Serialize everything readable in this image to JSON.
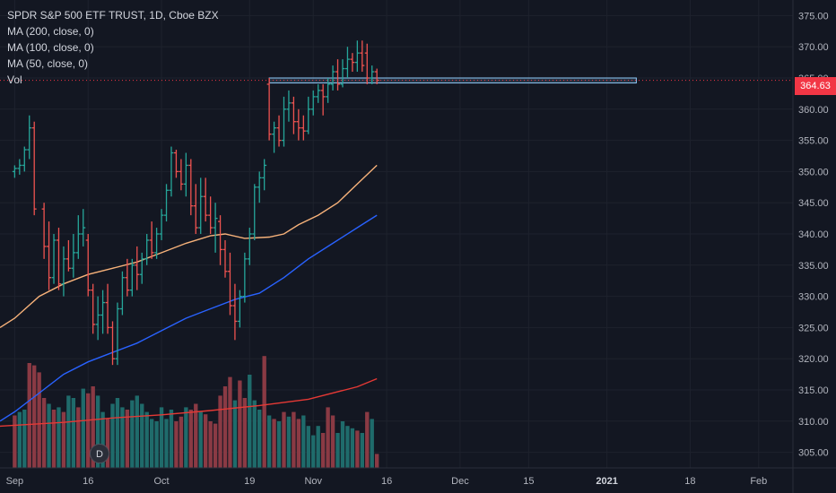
{
  "legend": {
    "title": "SPDR S&P 500 ETF TRUST, 1D, Cboe BZX",
    "ma200": "MA (200, close, 0)",
    "ma100": "MA (100, close, 0)",
    "ma50": "MA (50, close, 0)",
    "vol": "Vol"
  },
  "last_price": "364.63",
  "event_marker": "D",
  "colors": {
    "background": "#131722",
    "up": "#26a69a",
    "down": "#ef5350",
    "ma50": "#f7b27a",
    "ma100": "#2962ff",
    "ma200": "#e53935",
    "vol_up": "#1f6b6b",
    "vol_down": "#8a3a44",
    "price_line": "#f23645",
    "box": "#90caf9"
  },
  "chart_data": {
    "type": "candlestick",
    "y_axis": {
      "ticks": [
        "375.00",
        "370.00",
        "365.00",
        "360.00",
        "355.00",
        "350.00",
        "345.00",
        "340.00",
        "335.00",
        "330.00",
        "325.00",
        "320.00",
        "315.00",
        "310.00",
        "305.00"
      ],
      "tick_values": [
        375,
        370,
        365,
        360,
        355,
        350,
        345,
        340,
        335,
        330,
        325,
        320,
        315,
        310,
        305
      ],
      "range": [
        302.5,
        377.5
      ]
    },
    "x_axis": {
      "labels": [
        "Sep",
        "16",
        "Oct",
        "19",
        "Nov",
        "16",
        "Dec",
        "15",
        "2021",
        "18",
        "Feb"
      ],
      "label_days": [
        0,
        15,
        30,
        48,
        61,
        76,
        91,
        105,
        121,
        138,
        152
      ],
      "range": [
        -3,
        159
      ]
    },
    "candles": [
      [
        0,
        350,
        351,
        349,
        350.5
      ],
      [
        1,
        350.5,
        352,
        349.5,
        351
      ],
      [
        2,
        351,
        354,
        350,
        353.5
      ],
      [
        3,
        353.5,
        359,
        352,
        357
      ],
      [
        4,
        357,
        358,
        343,
        344
      ],
      [
        6,
        344,
        345,
        336,
        338
      ],
      [
        7,
        338,
        342,
        331,
        333
      ],
      [
        8,
        333,
        340,
        332,
        339
      ],
      [
        9,
        339,
        341,
        331,
        332
      ],
      [
        10,
        332,
        338,
        330,
        336
      ],
      [
        11,
        336,
        339,
        334,
        334.5
      ],
      [
        12,
        334.5,
        340,
        333,
        337
      ],
      [
        13,
        337,
        343,
        336,
        340
      ],
      [
        14,
        340,
        344,
        338,
        341
      ],
      [
        15,
        339,
        340,
        330,
        331
      ],
      [
        16,
        331,
        332,
        324,
        325.5
      ],
      [
        17,
        325.5,
        330,
        323,
        327
      ],
      [
        18,
        327,
        331,
        324,
        329
      ],
      [
        19,
        329,
        332,
        324,
        325
      ],
      [
        20,
        325,
        326,
        319,
        320
      ],
      [
        21,
        320,
        329,
        319,
        328
      ],
      [
        22,
        328,
        334,
        327,
        333
      ],
      [
        23,
        333,
        336,
        330,
        331
      ],
      [
        24,
        331,
        336,
        330,
        335
      ],
      [
        25,
        335,
        338,
        331,
        333.5
      ],
      [
        26,
        333.5,
        337,
        332,
        336
      ],
      [
        27,
        336,
        340,
        335,
        339
      ],
      [
        28,
        339,
        342,
        336,
        337
      ],
      [
        29,
        337,
        341,
        336,
        340
      ],
      [
        30,
        340,
        344,
        339,
        343
      ],
      [
        31,
        343,
        348,
        342,
        347
      ],
      [
        32,
        347,
        354,
        346,
        353
      ],
      [
        33,
        353,
        353.5,
        349,
        350
      ],
      [
        34,
        350,
        352,
        347,
        348
      ],
      [
        35,
        348,
        353,
        346,
        351
      ],
      [
        36,
        351,
        352,
        343,
        344.5
      ],
      [
        37,
        344.5,
        348,
        340,
        341
      ],
      [
        38,
        341,
        349,
        340,
        346
      ],
      [
        39,
        346,
        349,
        342,
        343
      ],
      [
        40,
        343,
        346,
        340,
        341
      ],
      [
        41,
        341,
        345,
        337,
        342.5
      ],
      [
        42,
        342,
        343,
        335,
        337.5
      ],
      [
        43,
        337.5,
        339,
        333,
        334
      ],
      [
        44,
        334,
        337,
        327,
        328.5
      ],
      [
        45,
        328.5,
        332,
        323,
        326
      ],
      [
        46,
        326,
        331,
        325,
        330
      ],
      [
        47,
        330,
        337,
        329,
        336
      ],
      [
        48,
        336,
        341,
        335,
        340
      ],
      [
        49,
        340,
        348,
        339,
        347.5
      ],
      [
        50,
        347.5,
        350,
        345,
        349
      ],
      [
        51,
        349,
        352,
        347,
        351
      ],
      [
        52,
        364,
        365,
        355,
        356
      ],
      [
        53,
        356,
        358,
        353,
        357
      ],
      [
        54,
        357,
        359,
        354,
        355
      ],
      [
        55,
        355,
        362,
        354,
        360
      ],
      [
        56,
        360,
        363,
        358,
        361
      ],
      [
        57,
        361,
        362,
        356,
        358
      ],
      [
        58,
        358,
        360,
        355,
        357
      ],
      [
        59,
        357,
        359,
        355,
        356.5
      ],
      [
        60,
        356.5,
        362,
        356,
        360
      ],
      [
        61,
        360,
        363,
        359,
        362
      ],
      [
        62,
        362,
        364,
        361,
        363
      ],
      [
        63,
        363,
        364,
        359,
        362
      ],
      [
        64,
        362,
        365,
        361,
        364
      ],
      [
        65,
        364,
        367,
        363,
        366
      ],
      [
        66,
        366,
        368,
        363,
        364
      ],
      [
        67,
        364,
        368,
        363.5,
        366.5
      ],
      [
        68,
        366.5,
        370,
        365,
        368
      ],
      [
        69,
        368,
        369,
        366,
        367.5
      ],
      [
        70,
        367.5,
        371,
        366,
        369
      ],
      [
        71,
        369,
        371,
        366,
        367
      ],
      [
        72,
        369,
        370.5,
        364,
        365
      ],
      [
        73,
        365,
        367,
        364,
        366
      ],
      [
        74,
        366,
        366.5,
        364,
        364.63
      ]
    ],
    "ma50": [
      [
        -3,
        325
      ],
      [
        0,
        326.5
      ],
      [
        5,
        330
      ],
      [
        10,
        332
      ],
      [
        15,
        333.5
      ],
      [
        20,
        334.5
      ],
      [
        25,
        335.5
      ],
      [
        30,
        337
      ],
      [
        35,
        338.5
      ],
      [
        40,
        339.7
      ],
      [
        43,
        340
      ],
      [
        47,
        339.3
      ],
      [
        52,
        339.5
      ],
      [
        55,
        340
      ],
      [
        58,
        341.5
      ],
      [
        62,
        343
      ],
      [
        66,
        345
      ],
      [
        70,
        348
      ],
      [
        74,
        351
      ]
    ],
    "ma100": [
      [
        -3,
        310
      ],
      [
        0,
        311.5
      ],
      [
        5,
        314.5
      ],
      [
        10,
        317.5
      ],
      [
        15,
        319.5
      ],
      [
        20,
        321
      ],
      [
        25,
        322.5
      ],
      [
        30,
        324.5
      ],
      [
        35,
        326.5
      ],
      [
        40,
        328
      ],
      [
        45,
        329.5
      ],
      [
        50,
        330.5
      ],
      [
        55,
        333
      ],
      [
        60,
        336
      ],
      [
        65,
        338.5
      ],
      [
        70,
        341
      ],
      [
        74,
        343
      ]
    ],
    "ma200": [
      [
        -3,
        309.2
      ],
      [
        10,
        309.8
      ],
      [
        20,
        310.5
      ],
      [
        30,
        311
      ],
      [
        40,
        311.7
      ],
      [
        50,
        312.5
      ],
      [
        60,
        313.5
      ],
      [
        70,
        315.5
      ],
      [
        74,
        316.8
      ]
    ],
    "volume": {
      "max": 100,
      "bars": [
        [
          0,
          45,
          0
        ],
        [
          1,
          48,
          1
        ],
        [
          2,
          50,
          1
        ],
        [
          3,
          90,
          0
        ],
        [
          4,
          88,
          0
        ],
        [
          5,
          82,
          0
        ],
        [
          6,
          60,
          0
        ],
        [
          7,
          55,
          1
        ],
        [
          8,
          50,
          0
        ],
        [
          9,
          52,
          1
        ],
        [
          10,
          48,
          0
        ],
        [
          11,
          62,
          1
        ],
        [
          12,
          60,
          1
        ],
        [
          13,
          52,
          0
        ],
        [
          14,
          68,
          1
        ],
        [
          15,
          64,
          0
        ],
        [
          16,
          70,
          0
        ],
        [
          17,
          62,
          1
        ],
        [
          18,
          48,
          1
        ],
        [
          19,
          42,
          0
        ],
        [
          20,
          55,
          1
        ],
        [
          21,
          60,
          1
        ],
        [
          22,
          52,
          1
        ],
        [
          23,
          50,
          0
        ],
        [
          24,
          58,
          1
        ],
        [
          25,
          62,
          1
        ],
        [
          26,
          55,
          1
        ],
        [
          27,
          48,
          1
        ],
        [
          28,
          42,
          1
        ],
        [
          29,
          40,
          1
        ],
        [
          30,
          52,
          1
        ],
        [
          31,
          42,
          1
        ],
        [
          32,
          50,
          1
        ],
        [
          33,
          40,
          0
        ],
        [
          34,
          44,
          0
        ],
        [
          35,
          52,
          1
        ],
        [
          36,
          50,
          0
        ],
        [
          37,
          55,
          0
        ],
        [
          38,
          48,
          1
        ],
        [
          39,
          46,
          0
        ],
        [
          40,
          40,
          0
        ],
        [
          41,
          38,
          0
        ],
        [
          42,
          62,
          0
        ],
        [
          43,
          70,
          0
        ],
        [
          44,
          78,
          0
        ],
        [
          45,
          58,
          1
        ],
        [
          46,
          75,
          0
        ],
        [
          47,
          60,
          0
        ],
        [
          48,
          80,
          1
        ],
        [
          49,
          58,
          1
        ],
        [
          50,
          50,
          1
        ],
        [
          51,
          96,
          0
        ],
        [
          52,
          45,
          1
        ],
        [
          53,
          42,
          0
        ],
        [
          54,
          40,
          1
        ],
        [
          55,
          48,
          0
        ],
        [
          56,
          44,
          1
        ],
        [
          57,
          48,
          0
        ],
        [
          58,
          42,
          0
        ],
        [
          59,
          45,
          1
        ],
        [
          60,
          36,
          1
        ],
        [
          61,
          28,
          1
        ],
        [
          62,
          36,
          1
        ],
        [
          63,
          30,
          0
        ],
        [
          64,
          52,
          0
        ],
        [
          65,
          45,
          0
        ],
        [
          66,
          30,
          1
        ],
        [
          67,
          40,
          1
        ],
        [
          68,
          36,
          1
        ],
        [
          69,
          34,
          1
        ],
        [
          70,
          32,
          0
        ],
        [
          71,
          30,
          1
        ],
        [
          72,
          48,
          0
        ],
        [
          73,
          42,
          1
        ],
        [
          74,
          12,
          0
        ]
      ]
    },
    "resistance_zone": {
      "x_start": 52,
      "x_end": 127,
      "y_top": 365.0,
      "y_bottom": 364.2
    }
  }
}
